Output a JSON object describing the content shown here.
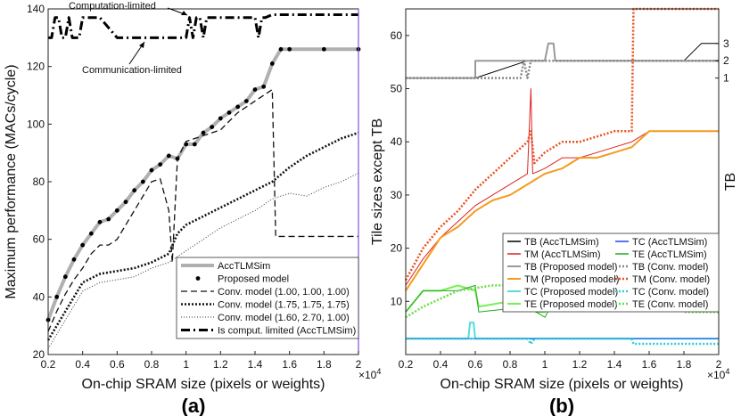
{
  "chart_data": [
    {
      "type": "line",
      "panel_label": "(a)",
      "xlabel": "On-chip SRAM size (pixels or weights)",
      "x_multiplier": "×10",
      "x_multiplier_exp": "4",
      "ylabel": "Maximum performance (MACs/cycle)",
      "xlim": [
        0.2,
        2.0
      ],
      "ylim": [
        20,
        140
      ],
      "xticks": [
        "0.2",
        "0.4",
        "0.6",
        "0.8",
        "1",
        "1.2",
        "1.4",
        "1.6",
        "1.8",
        "2"
      ],
      "yticks": [
        "20",
        "40",
        "60",
        "80",
        "100",
        "120",
        "140"
      ],
      "annotations": [
        "Computation-limited",
        "Communication-limited"
      ],
      "series": [
        {
          "name": "AccTLMSim",
          "color": "#b0b0b0",
          "style": "solid",
          "width": 4,
          "x": [
            0.2,
            0.25,
            0.3,
            0.35,
            0.4,
            0.45,
            0.5,
            0.55,
            0.6,
            0.65,
            0.7,
            0.75,
            0.8,
            0.85,
            0.9,
            0.95,
            1.0,
            1.05,
            1.1,
            1.15,
            1.2,
            1.25,
            1.3,
            1.35,
            1.4,
            1.45,
            1.5,
            1.55,
            1.6,
            1.8,
            2.0
          ],
          "y": [
            32,
            40,
            47,
            53,
            58,
            62,
            66,
            67,
            70,
            73,
            77,
            80,
            84,
            86,
            89,
            88,
            93,
            93,
            97,
            99,
            102,
            104,
            106,
            108,
            112,
            113,
            121,
            126,
            126,
            126,
            126
          ]
        },
        {
          "name": "Proposed model",
          "color": "#000000",
          "style": "dots",
          "width": 3,
          "x": [
            0.2,
            0.25,
            0.3,
            0.35,
            0.4,
            0.45,
            0.5,
            0.55,
            0.6,
            0.65,
            0.7,
            0.75,
            0.8,
            0.85,
            0.9,
            0.95,
            1.0,
            1.05,
            1.1,
            1.15,
            1.2,
            1.25,
            1.3,
            1.35,
            1.4,
            1.45,
            1.5,
            1.55,
            1.6,
            1.8,
            2.0
          ],
          "y": [
            32,
            40,
            47,
            53,
            58,
            62,
            66,
            67,
            70,
            73,
            77,
            80,
            84,
            86,
            89,
            88,
            93,
            93,
            97,
            99,
            102,
            104,
            106,
            108,
            112,
            113,
            121,
            126,
            126,
            126,
            126
          ]
        },
        {
          "name": "Conv. model (1.00, 1.00, 1.00)",
          "color": "#111111",
          "style": "dashed",
          "width": 1.3,
          "x": [
            0.2,
            0.25,
            0.3,
            0.35,
            0.4,
            0.45,
            0.5,
            0.55,
            0.6,
            0.7,
            0.8,
            0.85,
            0.9,
            0.92,
            0.95,
            1.0,
            1.05,
            1.1,
            1.2,
            1.3,
            1.4,
            1.45,
            1.5,
            1.52,
            1.6,
            1.8,
            2.0
          ],
          "y": [
            28,
            35,
            41,
            46,
            50,
            55,
            58,
            58,
            60,
            70,
            80,
            81,
            70,
            52,
            88,
            94,
            95,
            96,
            98,
            104,
            108,
            110,
            112,
            61,
            61,
            61,
            61
          ]
        },
        {
          "name": "Conv. model (1.75, 1.75, 1.75)",
          "color": "#111111",
          "style": "dotted",
          "width": 2.6,
          "x": [
            0.2,
            0.3,
            0.4,
            0.5,
            0.6,
            0.7,
            0.8,
            0.9,
            0.95,
            1.0,
            1.1,
            1.2,
            1.3,
            1.4,
            1.5,
            1.6,
            1.7,
            1.8,
            1.9,
            2.0
          ],
          "y": [
            25,
            35,
            45,
            48,
            49,
            50,
            52,
            55,
            62,
            65,
            68,
            71,
            74,
            77,
            80,
            85,
            89,
            92,
            95,
            97
          ]
        },
        {
          "name": "Conv. model (1.60, 2.70, 1.00)",
          "color": "#333333",
          "style": "finedot",
          "width": 1,
          "x": [
            0.2,
            0.3,
            0.4,
            0.5,
            0.6,
            0.7,
            0.8,
            0.9,
            1.0,
            1.1,
            1.2,
            1.3,
            1.4,
            1.5,
            1.6,
            1.7,
            1.8,
            1.9,
            2.0
          ],
          "y": [
            22,
            32,
            42,
            45,
            46,
            47,
            50,
            52,
            56,
            60,
            64,
            67,
            70,
            74,
            76,
            75,
            78,
            80,
            83
          ]
        },
        {
          "name": "Is comput. limited (AccTLMSim)",
          "color": "#000000",
          "style": "dashdot",
          "width": 3,
          "x": [
            0.2,
            0.22,
            0.24,
            0.26,
            0.28,
            0.3,
            0.32,
            0.34,
            0.36,
            0.38,
            0.4,
            0.45,
            0.5,
            0.6,
            0.8,
            1.0,
            1.02,
            1.04,
            1.06,
            1.08,
            1.1,
            1.12,
            1.14,
            1.16,
            1.18,
            1.2,
            1.4,
            1.42,
            1.44,
            1.46,
            1.5,
            2.0
          ],
          "y": [
            130,
            130,
            137,
            137,
            130,
            130,
            137,
            130,
            130,
            130,
            137,
            137,
            137,
            130,
            130,
            130,
            137,
            130,
            137,
            137,
            130,
            137,
            137,
            137,
            137,
            137,
            137,
            130,
            137,
            137,
            138,
            138
          ]
        }
      ],
      "legend": [
        "AccTLMSim",
        "Proposed model",
        "Conv. model (1.00, 1.00, 1.00)",
        "Conv. model (1.75, 1.75, 1.75)",
        "Conv. model (1.60, 2.70, 1.00)",
        "Is comput. limited (AccTLMSim)"
      ]
    },
    {
      "type": "line",
      "panel_label": "(b)",
      "xlabel": "On-chip SRAM size (pixels or weights)",
      "x_multiplier": "×10",
      "x_multiplier_exp": "4",
      "ylabel": "Tile sizes except TB",
      "ylabel_right": "TB",
      "xlim": [
        0.2,
        2.0
      ],
      "ylim": [
        0,
        65
      ],
      "xticks": [
        "0.2",
        "0.4",
        "0.6",
        "0.8",
        "1",
        "1.2",
        "1.4",
        "1.6",
        "1.8",
        "2"
      ],
      "yticks": [
        "10",
        "20",
        "30",
        "40",
        "50",
        "60"
      ],
      "right_yticks": [
        "1",
        "2",
        "3"
      ],
      "series": [
        {
          "name": "TB (AccTLMSim)",
          "color": "#000000",
          "style": "solid",
          "width": 1,
          "axis": "right",
          "x": [
            0.2,
            0.6,
            0.9,
            1.0,
            1.02,
            1.05,
            1.06,
            1.8,
            1.9,
            2.0
          ],
          "y": [
            1,
            1,
            2,
            2,
            3,
            3,
            2,
            2,
            3,
            3
          ]
        },
        {
          "name": "TM (AccTLMSim)",
          "color": "#dd2222",
          "style": "solid",
          "width": 1,
          "x": [
            0.2,
            0.3,
            0.4,
            0.5,
            0.6,
            0.7,
            0.8,
            0.9,
            0.92,
            0.93,
            1.0,
            1.1,
            1.2,
            1.3,
            1.4,
            1.5,
            1.6,
            1.7,
            2.0
          ],
          "y": [
            13,
            18,
            22,
            25,
            28,
            30,
            32,
            34,
            50,
            34,
            35,
            37,
            37,
            38,
            39,
            40,
            42,
            42,
            42
          ]
        },
        {
          "name": "TB (Proposed model)",
          "color": "#999999",
          "style": "solid",
          "width": 2,
          "axis": "right",
          "x": [
            0.2,
            0.6,
            0.6,
            1.0,
            1.02,
            1.05,
            1.06,
            2.0
          ],
          "y": [
            1,
            1,
            2,
            2,
            3,
            3,
            2,
            2
          ]
        },
        {
          "name": "TM (Proposed model)",
          "color": "#f59a1f",
          "style": "solid",
          "width": 2,
          "x": [
            0.2,
            0.3,
            0.4,
            0.5,
            0.6,
            0.7,
            0.8,
            0.9,
            1.0,
            1.1,
            1.2,
            1.3,
            1.4,
            1.5,
            1.6,
            1.7,
            2.0
          ],
          "y": [
            12,
            17,
            22,
            24,
            27,
            29,
            30,
            32,
            34,
            35,
            37,
            37,
            38,
            39,
            42,
            42,
            42
          ]
        },
        {
          "name": "TC (Proposed model)",
          "color": "#55dddd",
          "style": "solid",
          "width": 2,
          "x": [
            0.2,
            0.56,
            0.57,
            0.59,
            0.6,
            2.0
          ],
          "y": [
            3,
            3,
            6,
            6,
            3,
            3
          ]
        },
        {
          "name": "TE (Proposed model)",
          "color": "#77ee55",
          "style": "solid",
          "width": 2,
          "x": [
            0.2,
            0.3,
            0.4,
            0.5,
            0.6,
            0.62,
            0.8,
            0.9,
            0.95,
            1.0,
            1.05,
            1.2,
            1.4,
            1.6,
            2.0
          ],
          "y": [
            8,
            12,
            12,
            13,
            12,
            9,
            10,
            10,
            8,
            8,
            11,
            11,
            12,
            12,
            12
          ]
        },
        {
          "name": "TC (AccTLMSim)",
          "color": "#2244ee",
          "style": "solid",
          "width": 1,
          "x": [
            0.2,
            2.0
          ],
          "y": [
            3,
            3
          ]
        },
        {
          "name": "TE (AccTLMSim)",
          "color": "#22aa22",
          "style": "solid",
          "width": 1,
          "x": [
            0.2,
            0.3,
            0.5,
            0.6,
            0.62,
            0.9,
            1.0,
            1.05,
            1.6,
            2.0
          ],
          "y": [
            8,
            12,
            12,
            13,
            8,
            9,
            7,
            10,
            12,
            12
          ]
        },
        {
          "name": "TB (Conv. model)",
          "color": "#888888",
          "style": "dotted",
          "width": 2.5,
          "axis": "right",
          "x": [
            0.2,
            0.86,
            0.88,
            0.9,
            0.92,
            1.0,
            2.0
          ],
          "y": [
            1,
            1,
            2,
            1,
            2,
            2,
            2
          ]
        },
        {
          "name": "TM (Conv. model)",
          "color": "#e8501e",
          "style": "dotted",
          "width": 2.5,
          "x": [
            0.2,
            0.3,
            0.4,
            0.5,
            0.6,
            0.7,
            0.8,
            0.9,
            0.92,
            0.94,
            1.0,
            1.1,
            1.2,
            1.3,
            1.4,
            1.5,
            1.51,
            2.0
          ],
          "y": [
            14,
            20,
            24,
            27,
            31,
            34,
            37,
            40,
            42,
            36,
            38,
            40,
            40,
            41,
            42,
            42,
            65,
            65
          ]
        },
        {
          "name": "TC (Conv. model)",
          "color": "#33cccc",
          "style": "dotted",
          "width": 2.5,
          "x": [
            0.2,
            0.9,
            0.92,
            0.94,
            1.5,
            1.51,
            2.0
          ],
          "y": [
            3,
            3,
            2,
            3,
            3,
            2,
            2
          ]
        },
        {
          "name": "TE (Conv. model)",
          "color": "#66dd44",
          "style": "dotted",
          "width": 2.5,
          "x": [
            0.2,
            0.3,
            0.5,
            0.7,
            0.9,
            0.92,
            0.94,
            1.0,
            1.5,
            1.6,
            1.8,
            1.9,
            2.0
          ],
          "y": [
            7,
            9,
            12,
            13,
            13,
            9,
            13,
            13,
            12,
            12,
            8,
            8,
            8
          ]
        }
      ],
      "legend": [
        "TB (AccTLMSim)",
        "TC (AccTLMSim)",
        "TM (AccTLMSim)",
        "TE (AccTLMSim)",
        "TB (Proposed model)",
        "TB (Conv. model)",
        "TM (Proposed model)",
        "TM (Conv. model)",
        "TC (Proposed model)",
        "TC (Conv. model)",
        "TE (Proposed model)",
        "TE (Conv. model)"
      ]
    }
  ]
}
